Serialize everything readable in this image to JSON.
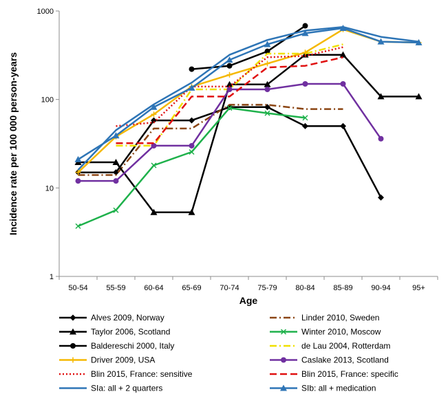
{
  "chart_data": {
    "type": "line",
    "title": "",
    "xlabel": "Age",
    "ylabel": "Incidence rate per 100 000 person-years",
    "y_scale": "log",
    "ylim": [
      1,
      1000
    ],
    "yticks": [
      "1",
      "10",
      "100",
      "1000"
    ],
    "grid": false,
    "legend_position": "bottom",
    "categories": [
      "50-54",
      "55-59",
      "60-64",
      "65-69",
      "70-74",
      "75-79",
      "80-84",
      "85-89",
      "90-94",
      "95+"
    ],
    "series": [
      {
        "name": "Alves 2009, Norway",
        "color": "#000000",
        "dash": "solid",
        "marker": "diamond",
        "values": [
          15,
          15,
          58,
          58,
          82,
          82,
          50,
          50,
          7.8,
          null
        ]
      },
      {
        "name": "Linder 2010, Sweden",
        "color": "#8b4513",
        "dash": "dashdot",
        "marker": "none",
        "values": [
          14,
          14,
          47,
          47,
          87,
          87,
          78,
          78,
          null,
          null
        ]
      },
      {
        "name": "Taylor 2006, Scotland",
        "color": "#000000",
        "dash": "solid",
        "marker": "triangle",
        "values": [
          19.5,
          19.5,
          5.3,
          5.3,
          148,
          148,
          320,
          320,
          108,
          108
        ]
      },
      {
        "name": "Winter 2010, Moscow",
        "color": "#1eb14b",
        "dash": "solid",
        "marker": "x",
        "values": [
          3.7,
          5.6,
          18,
          25.5,
          80,
          70,
          62,
          null,
          null,
          null
        ]
      },
      {
        "name": "Baldereschi 2000, Italy",
        "color": "#000000",
        "dash": "solid",
        "marker": "circle",
        "values": [
          null,
          null,
          null,
          220,
          240,
          350,
          680,
          null,
          null,
          null
        ]
      },
      {
        "name": "de Lau 2004, Rotterdam",
        "color": "#f0e000",
        "dash": "dashdot",
        "marker": "none",
        "values": [
          null,
          30,
          30,
          130,
          130,
          330,
          330,
          420,
          null,
          null
        ]
      },
      {
        "name": "Driver 2009, USA",
        "color": "#f5b800",
        "dash": "solid",
        "marker": "plus",
        "values": [
          15,
          38,
          68,
          140,
          190,
          255,
          340,
          620,
          450,
          440
        ]
      },
      {
        "name": "Caslake 2013, Scotland",
        "color": "#7030a0",
        "dash": "solid",
        "marker": "circle",
        "values": [
          12,
          12,
          30,
          30,
          130,
          130,
          150,
          150,
          36,
          null
        ]
      },
      {
        "name": "Blin 2015, France: sensitive",
        "color": "#e01010",
        "dash": "dotted",
        "marker": "none",
        "values": [
          null,
          50,
          55,
          140,
          140,
          300,
          310,
          390,
          null,
          null
        ]
      },
      {
        "name": "Blin 2015, France: specific",
        "color": "#e01010",
        "dash": "dashed",
        "marker": "none",
        "values": [
          null,
          32,
          32,
          108,
          108,
          230,
          240,
          300,
          null,
          null
        ]
      },
      {
        "name": "SIa: all + 2 quarters",
        "color": "#2e75b6",
        "dash": "solid",
        "marker": "none",
        "values": [
          16,
          45,
          88,
          155,
          320,
          470,
          600,
          660,
          510,
          450
        ]
      },
      {
        "name": "SIb: all + medication",
        "color": "#2e75b6",
        "dash": "solid",
        "marker": "triangle",
        "values": [
          21,
          39,
          82,
          135,
          280,
          420,
          560,
          640,
          450,
          440
        ]
      }
    ]
  }
}
